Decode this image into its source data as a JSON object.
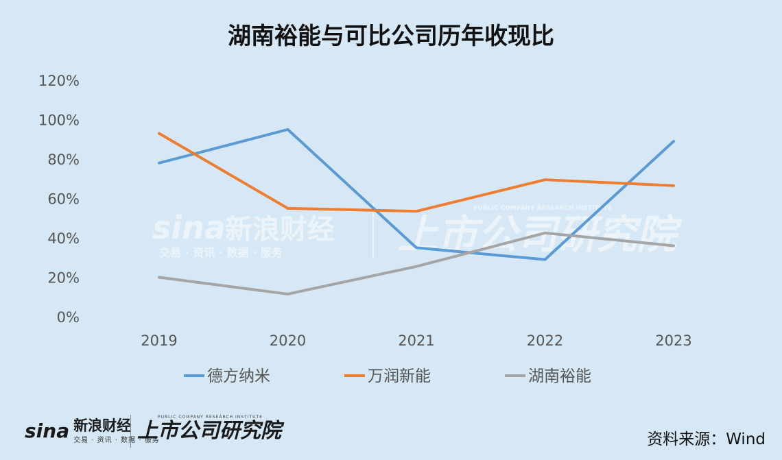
{
  "chart_data": {
    "type": "line",
    "title": "湖南裕能与可比公司历年收现比",
    "categories": [
      "2019",
      "2020",
      "2021",
      "2022",
      "2023"
    ],
    "series": [
      {
        "name": "德方纳米",
        "color": "#5b9bd5",
        "values": [
          0.78,
          0.95,
          0.35,
          0.29,
          0.89
        ]
      },
      {
        "name": "万润新能",
        "color": "#ed7d31",
        "values": [
          0.93,
          0.55,
          0.535,
          0.695,
          0.665
        ]
      },
      {
        "name": "湖南裕能",
        "color": "#a5a5a5",
        "values": [
          0.2,
          0.115,
          0.255,
          0.425,
          0.36
        ]
      }
    ],
    "yticks": [
      "0%",
      "20%",
      "40%",
      "60%",
      "80%",
      "100%",
      "120%"
    ],
    "ylim": [
      0,
      1.2
    ],
    "grid": false,
    "legend": "bottom"
  },
  "watermark": {
    "brand": "sina",
    "name": "新浪财经",
    "sub": "交易 · 资讯 · 数据 · 服务",
    "institute": "上市公司研究院",
    "institute_en": "PUBLIC COMPANY RESEARCH INSTITUTE"
  },
  "footer": {
    "brand": "sina",
    "name": "新浪财经",
    "sub": "交易 · 资讯 · 数据 · 服务",
    "institute_en": "PUBLIC COMPANY RESEARCH INSTITUTE",
    "institute": "上市公司研究院",
    "source": "资料来源：Wind"
  }
}
